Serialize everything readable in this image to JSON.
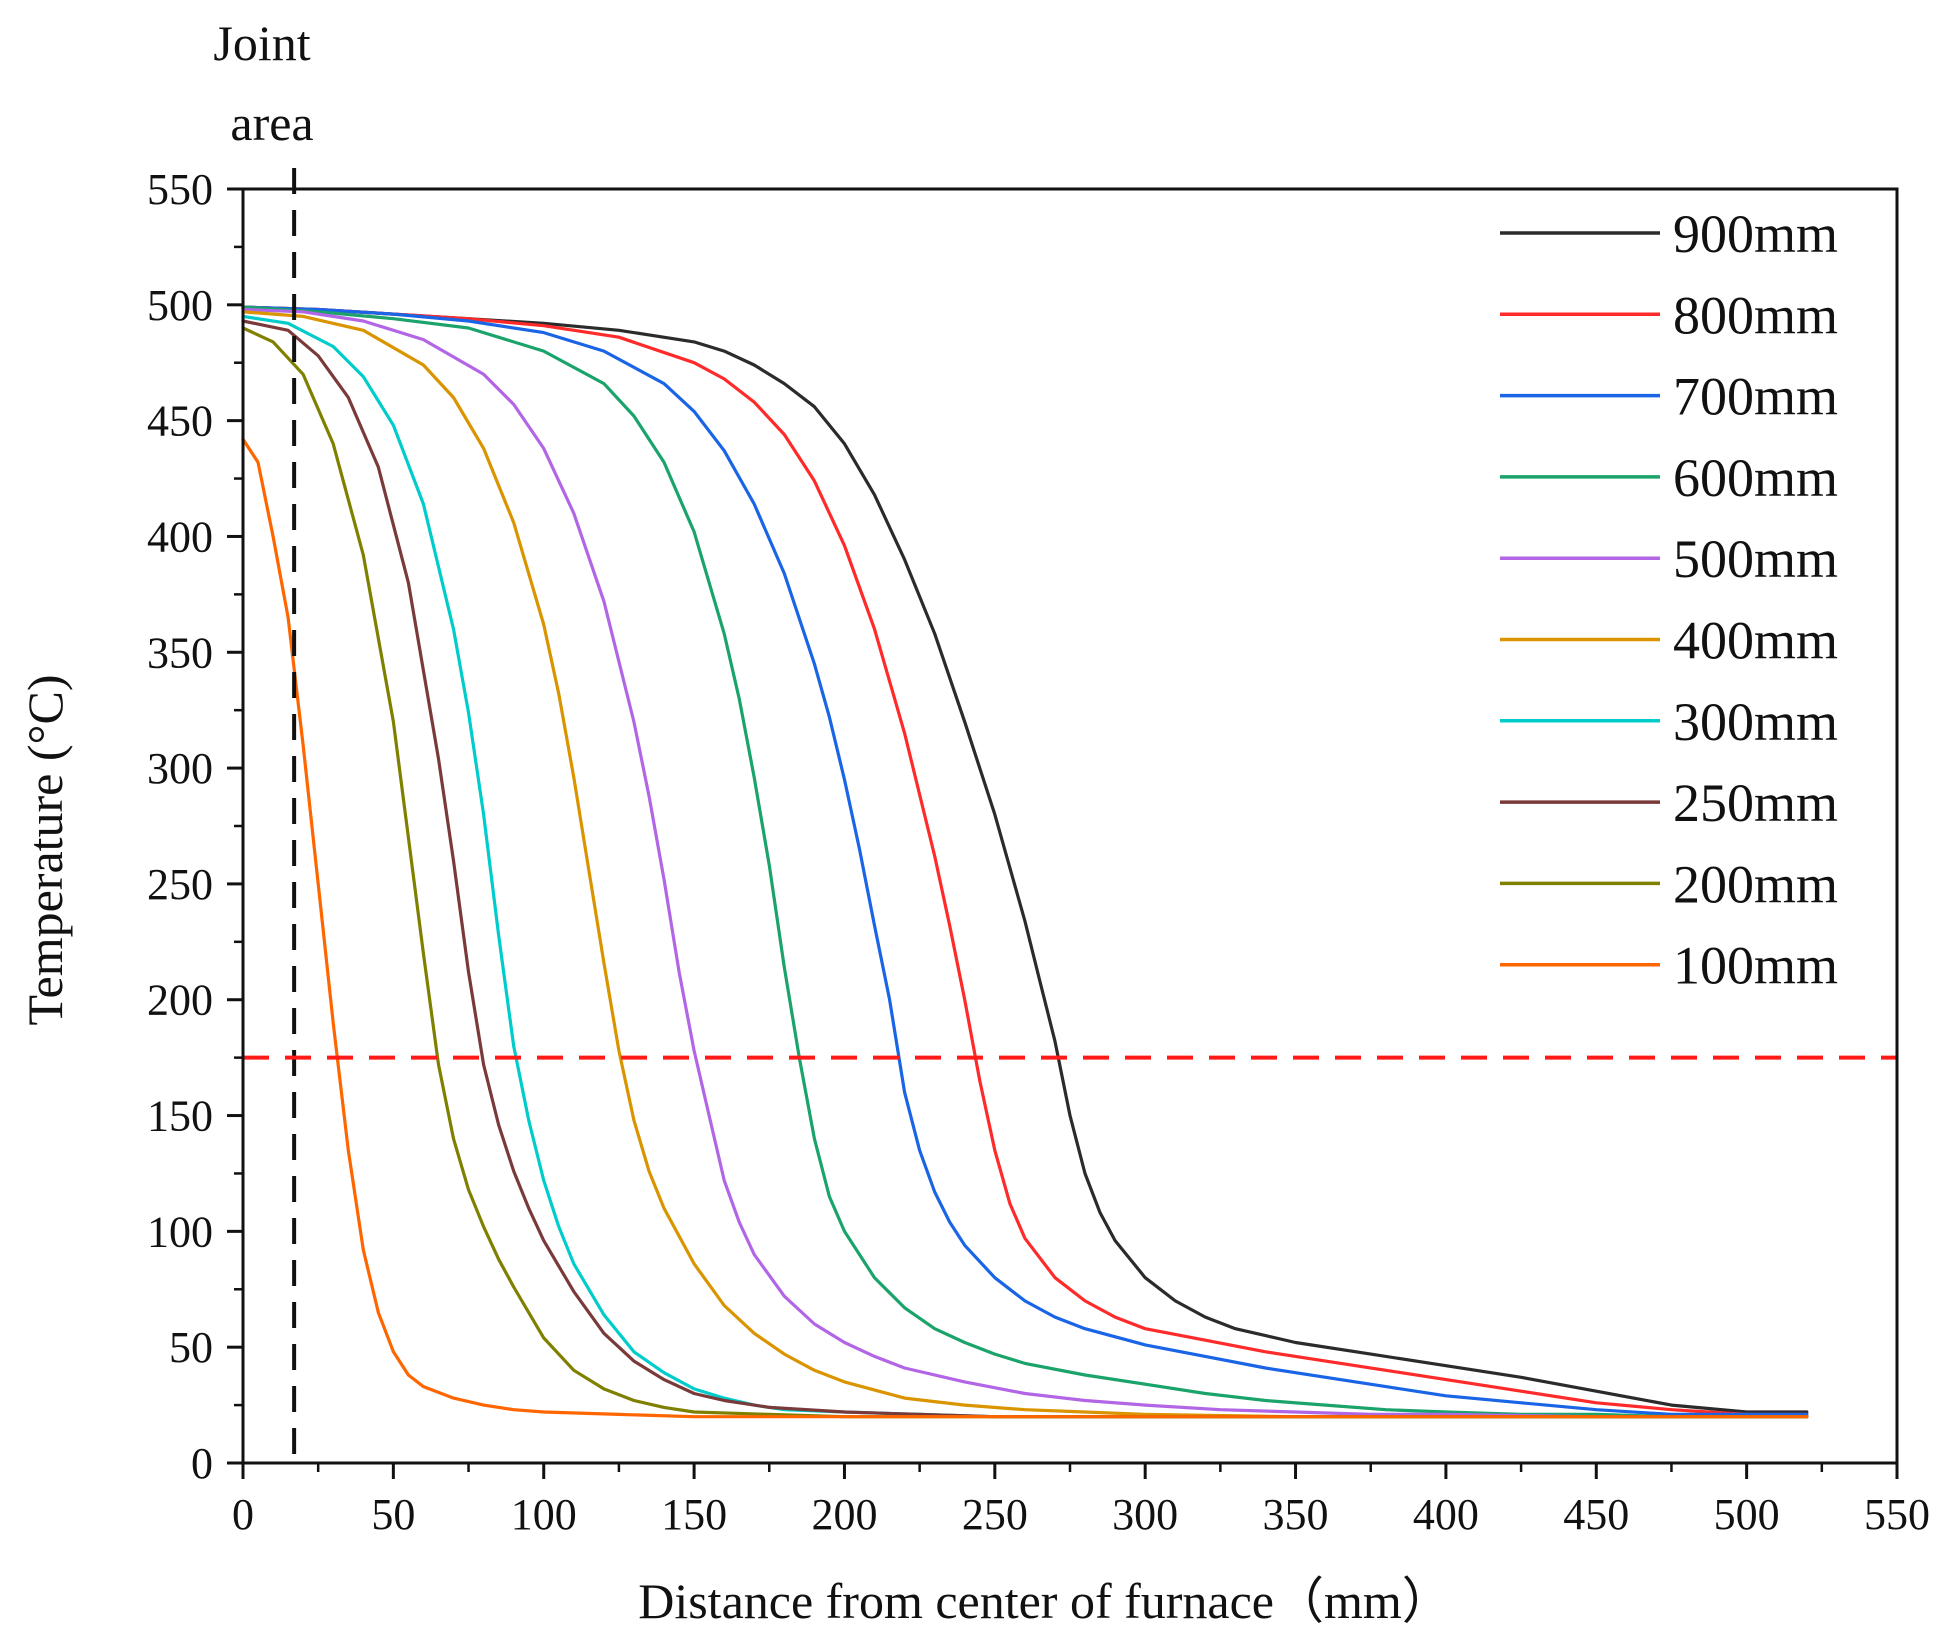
{
  "chart_data": {
    "type": "line",
    "title": "",
    "xlabel": "Distance from center of furnace（mm）",
    "ylabel": "Temperature (°C)",
    "xlim": [
      0,
      550
    ],
    "ylim": [
      0,
      550
    ],
    "xticks": [
      "0",
      "50",
      "100",
      "150",
      "200",
      "250",
      "300",
      "350",
      "400",
      "450",
      "500",
      "550"
    ],
    "yticks": [
      "0",
      "50",
      "100",
      "150",
      "200",
      "250",
      "300",
      "350",
      "400",
      "450",
      "500",
      "550"
    ],
    "grid": false,
    "legend_position": "top-right",
    "annotations": {
      "joint_area_label": [
        "Joint",
        "area"
      ],
      "joint_area_x": 17,
      "threshold_temperature": 175
    },
    "series": [
      {
        "name": "900mm",
        "color": "#2b2b2b",
        "x": [
          0,
          25,
          50,
          75,
          100,
          125,
          150,
          160,
          170,
          180,
          190,
          200,
          210,
          220,
          230,
          240,
          250,
          260,
          265,
          270,
          275,
          280,
          285,
          290,
          300,
          310,
          320,
          330,
          340,
          350,
          375,
          400,
          425,
          450,
          475,
          500,
          520
        ],
        "y": [
          499,
          498,
          496,
          494,
          492,
          489,
          484,
          480,
          474,
          466,
          456,
          440,
          418,
          390,
          358,
          320,
          280,
          234,
          208,
          182,
          150,
          125,
          108,
          96,
          80,
          70,
          63,
          58,
          55,
          52,
          47,
          42,
          37,
          31,
          25,
          22,
          22
        ]
      },
      {
        "name": "800mm",
        "color": "#ff2a2a",
        "x": [
          0,
          25,
          50,
          75,
          100,
          125,
          150,
          160,
          170,
          180,
          190,
          200,
          210,
          220,
          230,
          235,
          240,
          245,
          250,
          255,
          260,
          270,
          280,
          290,
          300,
          320,
          340,
          360,
          380,
          400,
          425,
          450,
          475,
          500,
          520
        ],
        "y": [
          499,
          498,
          496,
          494,
          491,
          486,
          475,
          468,
          458,
          444,
          424,
          396,
          360,
          315,
          262,
          232,
          200,
          165,
          135,
          112,
          97,
          80,
          70,
          63,
          58,
          53,
          48,
          44,
          40,
          36,
          31,
          26,
          23,
          21,
          21
        ]
      },
      {
        "name": "700mm",
        "color": "#1a64e6",
        "x": [
          0,
          25,
          50,
          75,
          100,
          120,
          140,
          150,
          160,
          170,
          180,
          190,
          195,
          200,
          205,
          210,
          215,
          220,
          225,
          230,
          235,
          240,
          250,
          260,
          270,
          280,
          300,
          320,
          340,
          360,
          380,
          400,
          425,
          450,
          475,
          500,
          520
        ],
        "y": [
          499,
          498,
          496,
          493,
          488,
          480,
          466,
          454,
          437,
          414,
          384,
          345,
          322,
          295,
          265,
          232,
          200,
          160,
          135,
          117,
          104,
          94,
          80,
          70,
          63,
          58,
          51,
          46,
          41,
          37,
          33,
          29,
          26,
          23,
          21,
          21,
          21
        ]
      },
      {
        "name": "600mm",
        "color": "#1aa36a",
        "x": [
          0,
          25,
          50,
          75,
          100,
          120,
          130,
          140,
          150,
          160,
          165,
          170,
          175,
          180,
          185,
          190,
          195,
          200,
          210,
          220,
          230,
          240,
          250,
          260,
          280,
          300,
          320,
          340,
          360,
          380,
          400,
          425,
          450,
          475,
          500,
          520
        ],
        "y": [
          499,
          497,
          494,
          490,
          480,
          466,
          452,
          432,
          402,
          358,
          330,
          296,
          258,
          214,
          175,
          140,
          115,
          100,
          80,
          67,
          58,
          52,
          47,
          43,
          38,
          34,
          30,
          27,
          25,
          23,
          22,
          21,
          21,
          20,
          20,
          20
        ]
      },
      {
        "name": "500mm",
        "color": "#b266e6",
        "x": [
          0,
          20,
          40,
          60,
          80,
          90,
          100,
          110,
          120,
          130,
          135,
          140,
          145,
          150,
          155,
          160,
          165,
          170,
          180,
          190,
          200,
          210,
          220,
          240,
          260,
          280,
          300,
          325,
          350,
          375,
          400,
          450,
          500,
          520
        ],
        "y": [
          498,
          497,
          493,
          485,
          470,
          457,
          438,
          410,
          372,
          320,
          288,
          252,
          212,
          178,
          150,
          122,
          104,
          90,
          72,
          60,
          52,
          46,
          41,
          35,
          30,
          27,
          25,
          23,
          22,
          21,
          21,
          20,
          20,
          20
        ]
      },
      {
        "name": "400mm",
        "color": "#d99400",
        "x": [
          0,
          20,
          40,
          60,
          70,
          80,
          90,
          100,
          105,
          110,
          115,
          120,
          125,
          130,
          135,
          140,
          150,
          160,
          170,
          180,
          190,
          200,
          220,
          240,
          260,
          280,
          300,
          350,
          400,
          450,
          500,
          520
        ],
        "y": [
          497,
          495,
          489,
          474,
          460,
          438,
          406,
          362,
          332,
          296,
          256,
          216,
          178,
          148,
          126,
          110,
          86,
          68,
          56,
          47,
          40,
          35,
          28,
          25,
          23,
          22,
          21,
          20,
          20,
          20,
          20,
          20
        ]
      },
      {
        "name": "300mm",
        "color": "#00cccc",
        "x": [
          0,
          15,
          30,
          40,
          50,
          60,
          70,
          75,
          80,
          85,
          90,
          95,
          100,
          105,
          110,
          120,
          130,
          140,
          150,
          160,
          170,
          180,
          200,
          225,
          250,
          300,
          350,
          400,
          450,
          500,
          520
        ],
        "y": [
          495,
          492,
          482,
          469,
          448,
          414,
          360,
          324,
          280,
          228,
          180,
          148,
          122,
          102,
          86,
          64,
          48,
          39,
          32,
          28,
          25,
          23,
          22,
          21,
          20,
          20,
          20,
          20,
          20,
          20,
          20
        ]
      },
      {
        "name": "250mm",
        "color": "#7a3a3a",
        "x": [
          0,
          15,
          25,
          35,
          45,
          55,
          65,
          70,
          75,
          80,
          85,
          90,
          95,
          100,
          110,
          120,
          130,
          140,
          150,
          160,
          175,
          200,
          225,
          250,
          300,
          350,
          400,
          450,
          500,
          520
        ],
        "y": [
          493,
          489,
          478,
          460,
          430,
          380,
          304,
          260,
          212,
          172,
          146,
          126,
          110,
          96,
          74,
          56,
          44,
          36,
          30,
          27,
          24,
          22,
          21,
          20,
          20,
          20,
          20,
          20,
          20,
          20
        ]
      },
      {
        "name": "200mm",
        "color": "#808000",
        "x": [
          0,
          10,
          20,
          30,
          40,
          50,
          55,
          60,
          65,
          70,
          75,
          80,
          85,
          90,
          100,
          110,
          120,
          130,
          140,
          150,
          175,
          200,
          250,
          300,
          350,
          400,
          450,
          500,
          520
        ],
        "y": [
          490,
          484,
          470,
          440,
          392,
          320,
          270,
          220,
          172,
          140,
          118,
          102,
          88,
          76,
          54,
          40,
          32,
          27,
          24,
          22,
          21,
          20,
          20,
          20,
          20,
          20,
          20,
          20,
          20
        ]
      },
      {
        "name": "100mm",
        "color": "#ff6600",
        "x": [
          0,
          5,
          10,
          15,
          20,
          25,
          30,
          35,
          40,
          45,
          50,
          55,
          60,
          70,
          80,
          90,
          100,
          125,
          150,
          200,
          250,
          300,
          350,
          400,
          450,
          500,
          520
        ],
        "y": [
          442,
          432,
          400,
          365,
          310,
          250,
          190,
          135,
          92,
          65,
          48,
          38,
          33,
          28,
          25,
          23,
          22,
          21,
          20,
          20,
          20,
          20,
          20,
          20,
          20,
          20,
          20
        ]
      }
    ]
  }
}
